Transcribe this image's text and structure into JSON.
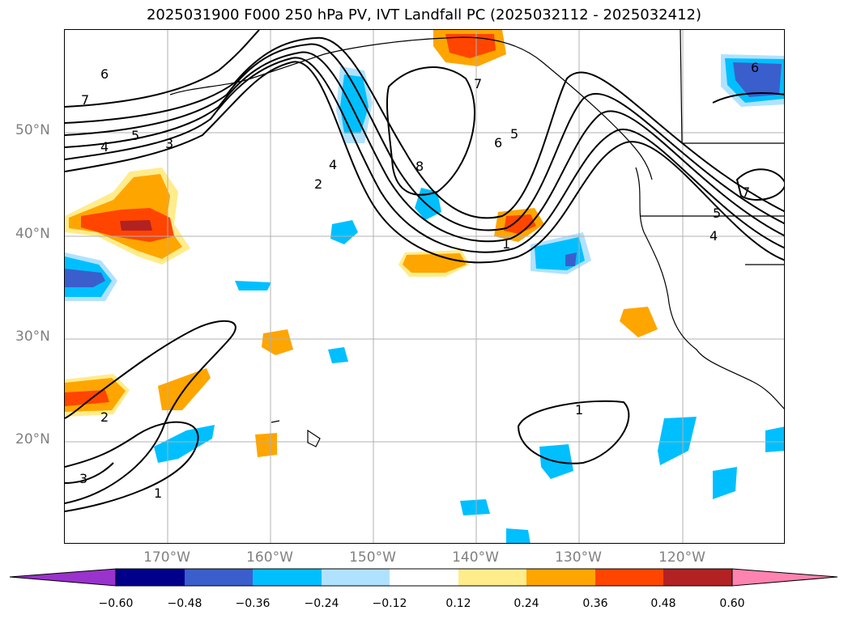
{
  "title": "2025031900 F000 250 hPa PV, IVT Landfall PC (2025032112 - 2025032412)",
  "lat_labels": [
    "50°N",
    "40°N",
    "30°N",
    "20°N"
  ],
  "lon_labels": [
    "170°W",
    "160°W",
    "150°W",
    "140°W",
    "130°W",
    "120°W"
  ],
  "contour_labels": [
    "6",
    "7",
    "5",
    "4",
    "3",
    "4",
    "2",
    "8",
    "7",
    "5",
    "6",
    "1",
    "6",
    "7",
    "5",
    "4",
    "1",
    "2",
    "3",
    "1"
  ],
  "colorbar": {
    "ticks": [
      "−0.60",
      "−0.48",
      "−0.36",
      "−0.24",
      "−0.12",
      "0.12",
      "0.24",
      "0.36",
      "0.48",
      "0.60"
    ],
    "colors": [
      "#9a32cd",
      "#00008b",
      "#3a5fcd",
      "#00bfff",
      "#b0e2ff",
      "#ffffff",
      "#ffec8b",
      "#ffa500",
      "#ff4500",
      "#b22222",
      "#ff83b0"
    ]
  },
  "colors": {
    "pos_low": "#ffec8b",
    "pos_mid": "#ffa500",
    "pos_high": "#ff4500",
    "pos_max": "#b22222",
    "neg_low": "#b0e2ff",
    "neg_mid": "#00bfff",
    "neg_high": "#3a5fcd",
    "grid": "#b0b0b0",
    "label_gray": "#808080"
  }
}
